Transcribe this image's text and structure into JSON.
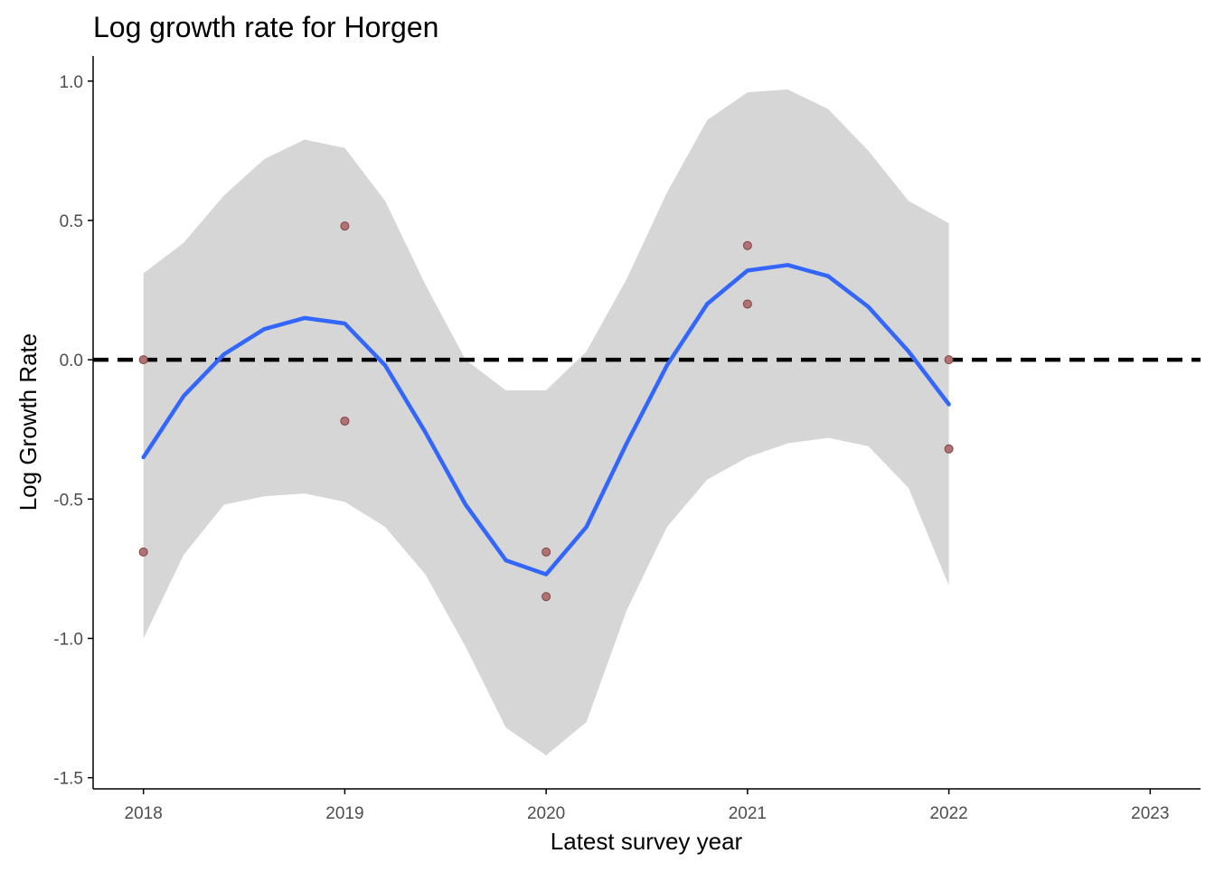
{
  "chart_data": {
    "type": "scatter",
    "title": "Log growth rate for Horgen",
    "xlabel": "Latest survey year",
    "ylabel": "Log Growth Rate",
    "xlim": [
      2017.75,
      2023.25
    ],
    "ylim": [
      -1.54,
      1.09
    ],
    "x_ticks": [
      "2018",
      "2019",
      "2020",
      "2021",
      "2022",
      "2023"
    ],
    "y_ticks": [
      "-1.5",
      "-1.0",
      "-0.5",
      "0.0",
      "0.5",
      "1.0"
    ],
    "grid": false,
    "legend": "none",
    "reference_line": {
      "y": 0.0,
      "style": "dashed",
      "color": "#000000"
    },
    "points": {
      "color": "#b27272",
      "x": [
        2018,
        2018,
        2019,
        2019,
        2020,
        2020,
        2021,
        2021,
        2022,
        2022
      ],
      "y": [
        0.0,
        -0.69,
        0.48,
        -0.22,
        -0.69,
        -0.85,
        0.41,
        0.2,
        0.0,
        -0.32
      ]
    },
    "smooth": {
      "color": "#3366ff",
      "band_color": "#d6d6d6",
      "x": [
        2018.0,
        2018.2,
        2018.4,
        2018.6,
        2018.8,
        2019.0,
        2019.2,
        2019.4,
        2019.6,
        2019.8,
        2020.0,
        2020.2,
        2020.4,
        2020.6,
        2020.8,
        2021.0,
        2021.2,
        2021.4,
        2021.6,
        2021.8,
        2022.0
      ],
      "y": [
        -0.35,
        -0.13,
        0.02,
        0.11,
        0.15,
        0.13,
        -0.02,
        -0.26,
        -0.52,
        -0.72,
        -0.77,
        -0.6,
        -0.3,
        -0.02,
        0.2,
        0.32,
        0.34,
        0.3,
        0.19,
        0.03,
        -0.16
      ],
      "upper": [
        0.31,
        0.42,
        0.59,
        0.72,
        0.79,
        0.76,
        0.57,
        0.27,
        0.0,
        -0.11,
        -0.11,
        0.03,
        0.29,
        0.6,
        0.86,
        0.96,
        0.97,
        0.9,
        0.75,
        0.57,
        0.49
      ],
      "lower": [
        -1.0,
        -0.7,
        -0.52,
        -0.49,
        -0.48,
        -0.51,
        -0.6,
        -0.77,
        -1.03,
        -1.32,
        -1.42,
        -1.3,
        -0.9,
        -0.6,
        -0.43,
        -0.35,
        -0.3,
        -0.28,
        -0.31,
        -0.46,
        -0.81
      ]
    }
  }
}
